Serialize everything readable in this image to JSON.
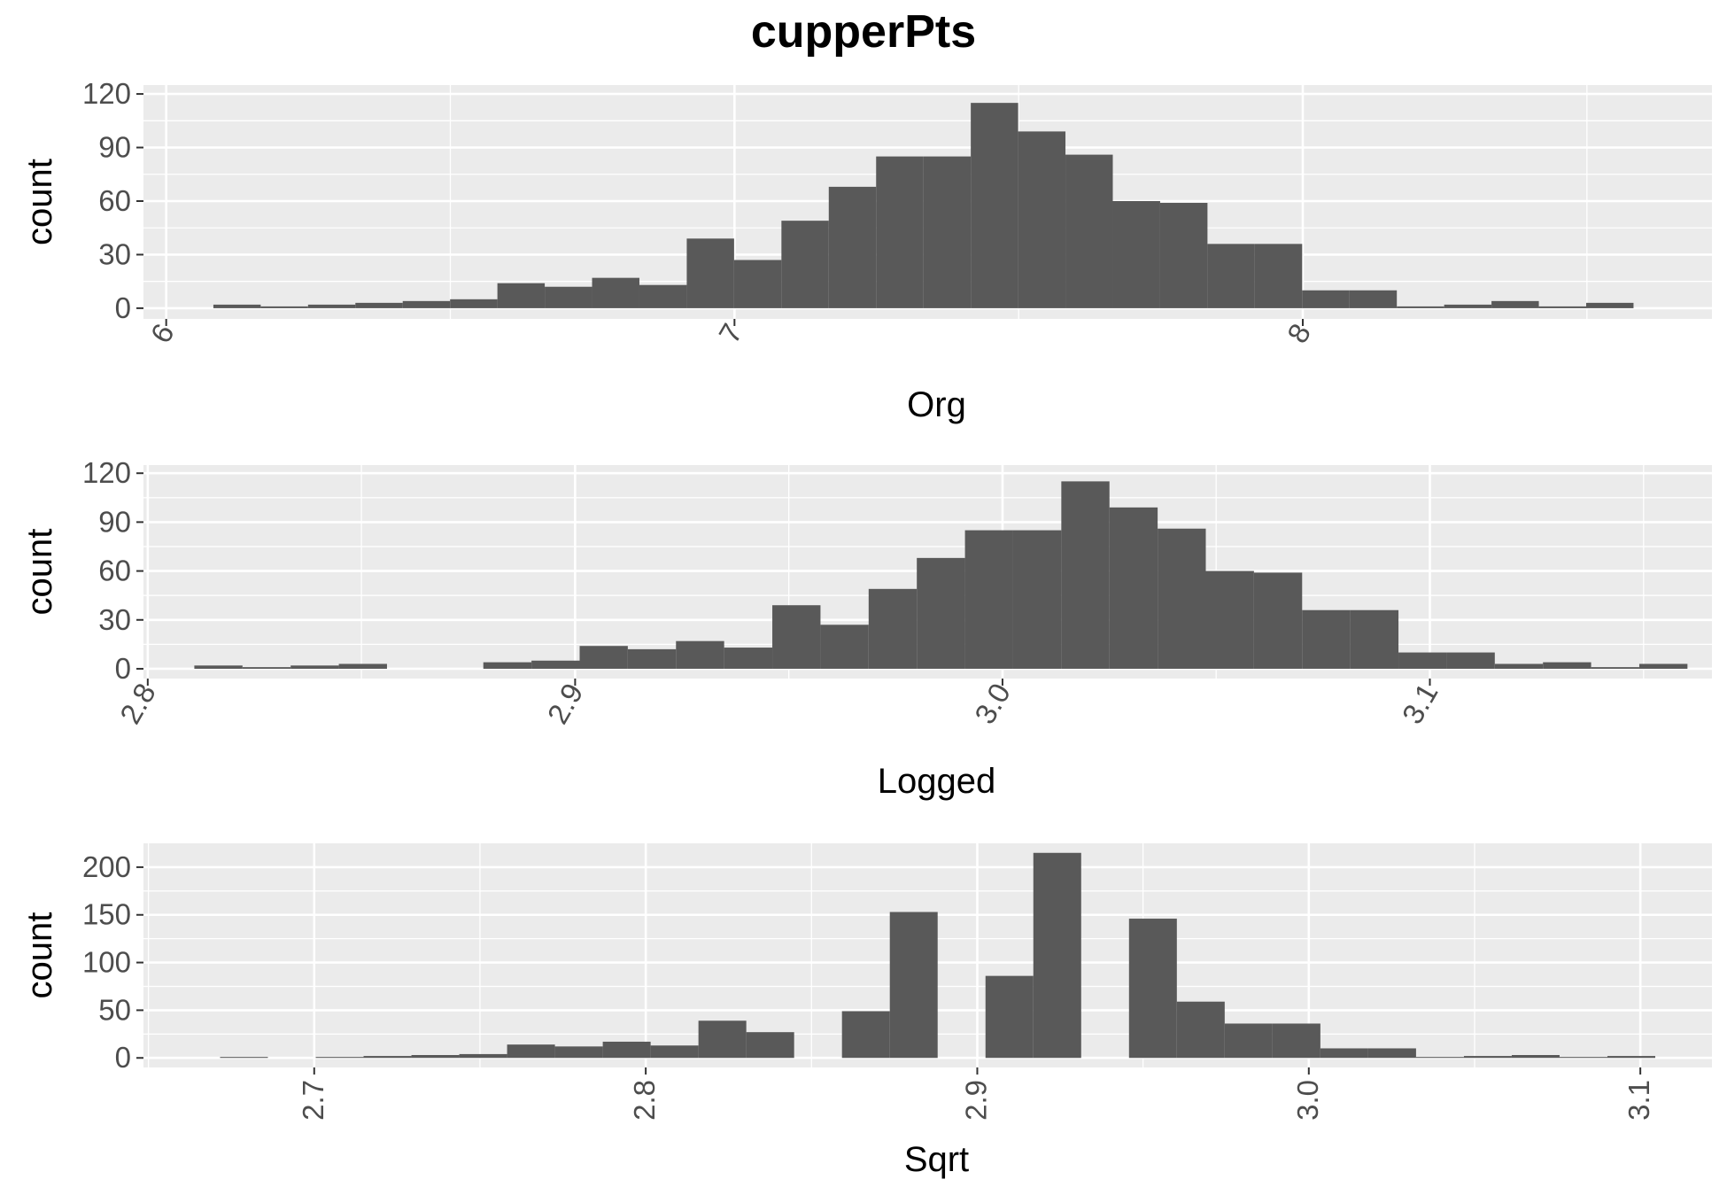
{
  "title": "cupperPts",
  "chart_data": [
    {
      "type": "bar",
      "histogram": true,
      "xlabel": "Org",
      "ylabel": "count",
      "xlim": [
        5.96,
        8.72
      ],
      "ylim": [
        -6,
        125
      ],
      "xticks": [
        "6",
        "7",
        "8"
      ],
      "xtick_values": [
        6,
        7,
        8
      ],
      "yticks": [
        0,
        30,
        60,
        90,
        120
      ],
      "bin_start": 6.083,
      "bin_width": 0.0833,
      "values": [
        2,
        1,
        2,
        3,
        4,
        5,
        14,
        12,
        17,
        13,
        39,
        27,
        49,
        68,
        85,
        85,
        115,
        99,
        86,
        60,
        59,
        36,
        36,
        10,
        10,
        1,
        2,
        4,
        1,
        3
      ]
    },
    {
      "type": "bar",
      "histogram": true,
      "xlabel": "Logged",
      "ylabel": "count",
      "xlim": [
        2.799,
        3.166
      ],
      "ylim": [
        -6,
        125
      ],
      "xticks": [
        "2.8",
        "2.9",
        "3.0",
        "3.1"
      ],
      "xtick_values": [
        2.8,
        2.9,
        3.0,
        3.1
      ],
      "yticks": [
        0,
        30,
        60,
        90,
        120
      ],
      "bin_start": 2.8109,
      "bin_width": 0.01127,
      "values": [
        2,
        1,
        2,
        3,
        0,
        0,
        4,
        5,
        14,
        12,
        17,
        13,
        39,
        27,
        49,
        68,
        85,
        85,
        115,
        99,
        86,
        60,
        59,
        36,
        36,
        10,
        10,
        3,
        4,
        1,
        3
      ]
    },
    {
      "type": "bar",
      "histogram": true,
      "xlabel": "Sqrt",
      "ylabel": "count",
      "xlim": [
        2.6485,
        3.1216
      ],
      "ylim": [
        -10,
        225
      ],
      "xticks": [
        "2.7",
        "2.8",
        "2.9",
        "3.0",
        "3.1"
      ],
      "xtick_values": [
        2.7,
        2.8,
        2.9,
        3.0,
        3.1
      ],
      "yticks": [
        0,
        50,
        100,
        150,
        200
      ],
      "bin_start": 2.6716,
      "bin_width": 0.01443,
      "values": [
        1,
        0,
        1,
        2,
        3,
        4,
        14,
        12,
        17,
        13,
        39,
        27,
        0,
        49,
        153,
        0,
        86,
        215,
        0,
        146,
        59,
        36,
        36,
        10,
        10,
        1,
        2,
        3,
        1,
        2
      ]
    }
  ]
}
